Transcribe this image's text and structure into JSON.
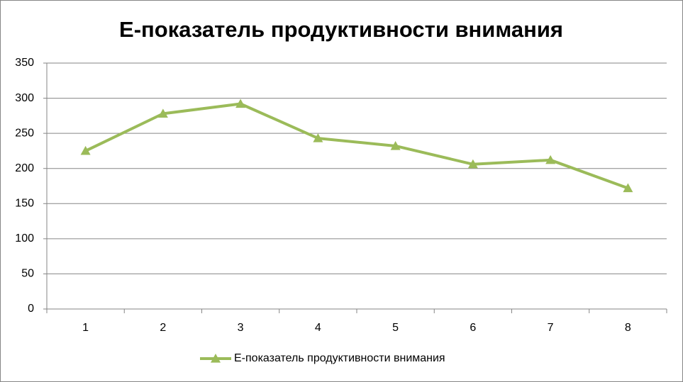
{
  "chart_data": {
    "type": "line",
    "title": "Е-показатель продуктивности внимания",
    "categories": [
      "1",
      "2",
      "3",
      "4",
      "5",
      "6",
      "7",
      "8"
    ],
    "series": [
      {
        "name": "Е-показатель продуктивности внимания",
        "color": "#9bbb59",
        "values": [
          225,
          278,
          292,
          243,
          232,
          206,
          212,
          172
        ]
      }
    ],
    "ylim": [
      0,
      350
    ],
    "yticks": [
      0,
      50,
      100,
      150,
      200,
      250,
      300,
      350
    ],
    "grid": true,
    "legend": "bottom"
  }
}
